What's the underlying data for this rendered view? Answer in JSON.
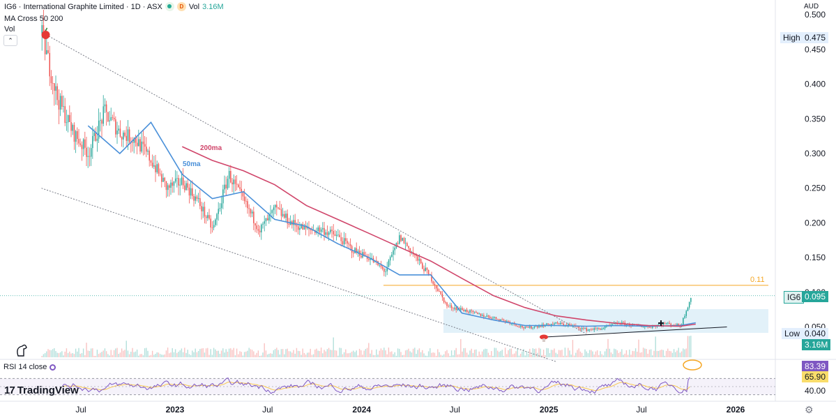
{
  "header": {
    "title": "IG6 · International Graphite Limited · 1D · ASX",
    "status_letter": "D",
    "vol_label": "Vol",
    "vol_value": "3.16M",
    "indicator": "MA Cross 50 200",
    "vol_pane": "Vol",
    "currency": "AUD"
  },
  "rsi_pane": {
    "label": "RSI 14 close"
  },
  "branding": {
    "logo_text": "TradingView",
    "logo_mark": "17"
  },
  "colors": {
    "up": "#26a69a",
    "down": "#ef5350",
    "ma50": "#4a90d9",
    "ma200": "#d0456a",
    "level": "#f5a623",
    "rsi": "#7e57c2",
    "trend": "#787b86",
    "box": "#cfe8f5"
  },
  "chart_data": [
    {
      "type": "candlestick",
      "title": "IG6 · International Graphite Limited · 1D · ASX",
      "x_ticks": [
        "Jul",
        "2023",
        "Jul",
        "2024",
        "Jul",
        "2025",
        "Jul",
        "2026"
      ],
      "y_ticks": [
        "0.500",
        "0.450",
        "0.400",
        "0.350",
        "0.300",
        "0.250",
        "0.200",
        "0.150",
        "0.100",
        "0.050"
      ],
      "ylim": [
        0.0,
        0.5
      ],
      "y_scale": "linear",
      "price_labels": {
        "high": {
          "label": "High",
          "value": "0.475"
        },
        "last": {
          "label": "IG6",
          "value": "0.095"
        },
        "low": {
          "label": "Low",
          "value": "0.040"
        },
        "volume": {
          "value": "3.16M"
        }
      },
      "ma_labels": {
        "ma50": "50ma",
        "ma200": "200ma"
      },
      "horizontal_level": {
        "value": 0.11,
        "label": "0.11"
      },
      "price_key_points": [
        {
          "x": "2022-04",
          "y": 0.47
        },
        {
          "x": "2022-05",
          "y": 0.38
        },
        {
          "x": "2022-06",
          "y": 0.33
        },
        {
          "x": "2022-07",
          "y": 0.3
        },
        {
          "x": "2022-08",
          "y": 0.36
        },
        {
          "x": "2022-09",
          "y": 0.33
        },
        {
          "x": "2022-10",
          "y": 0.32
        },
        {
          "x": "2022-11",
          "y": 0.29
        },
        {
          "x": "2022-12",
          "y": 0.25
        },
        {
          "x": "2023-01",
          "y": 0.26
        },
        {
          "x": "2023-02",
          "y": 0.23
        },
        {
          "x": "2023-03",
          "y": 0.19
        },
        {
          "x": "2023-04",
          "y": 0.27
        },
        {
          "x": "2023-05",
          "y": 0.23
        },
        {
          "x": "2023-06",
          "y": 0.19
        },
        {
          "x": "2023-07",
          "y": 0.22
        },
        {
          "x": "2023-08",
          "y": 0.2
        },
        {
          "x": "2023-09",
          "y": 0.19
        },
        {
          "x": "2023-10",
          "y": 0.19
        },
        {
          "x": "2023-11",
          "y": 0.18
        },
        {
          "x": "2023-12",
          "y": 0.16
        },
        {
          "x": "2024-01",
          "y": 0.15
        },
        {
          "x": "2024-02",
          "y": 0.13
        },
        {
          "x": "2024-03",
          "y": 0.18
        },
        {
          "x": "2024-04",
          "y": 0.15
        },
        {
          "x": "2024-05",
          "y": 0.12
        },
        {
          "x": "2024-06",
          "y": 0.08
        },
        {
          "x": "2024-07",
          "y": 0.075
        },
        {
          "x": "2024-08",
          "y": 0.068
        },
        {
          "x": "2024-09",
          "y": 0.063
        },
        {
          "x": "2024-10",
          "y": 0.057
        },
        {
          "x": "2024-11",
          "y": 0.048
        },
        {
          "x": "2024-12",
          "y": 0.052
        },
        {
          "x": "2025-01",
          "y": 0.055
        },
        {
          "x": "2025-02",
          "y": 0.052
        },
        {
          "x": "2025-03",
          "y": 0.046
        },
        {
          "x": "2025-04",
          "y": 0.048
        },
        {
          "x": "2025-05",
          "y": 0.056
        },
        {
          "x": "2025-06",
          "y": 0.052
        },
        {
          "x": "2025-07",
          "y": 0.05
        },
        {
          "x": "2025-08",
          "y": 0.055
        },
        {
          "x": "2025-09",
          "y": 0.052
        },
        {
          "x": "2025-10",
          "y": 0.115
        },
        {
          "x": "2025-10-06",
          "y": 0.095
        }
      ],
      "ma50_points": [
        {
          "x": "2022-07",
          "y": 0.34
        },
        {
          "x": "2022-09",
          "y": 0.3
        },
        {
          "x": "2022-11",
          "y": 0.345
        },
        {
          "x": "2023-01",
          "y": 0.27
        },
        {
          "x": "2023-03",
          "y": 0.235
        },
        {
          "x": "2023-05",
          "y": 0.245
        },
        {
          "x": "2023-07",
          "y": 0.205
        },
        {
          "x": "2023-09",
          "y": 0.195
        },
        {
          "x": "2023-11",
          "y": 0.17
        },
        {
          "x": "2024-01",
          "y": 0.15
        },
        {
          "x": "2024-03",
          "y": 0.125
        },
        {
          "x": "2024-05",
          "y": 0.125
        },
        {
          "x": "2024-07",
          "y": 0.07
        },
        {
          "x": "2024-09",
          "y": 0.06
        },
        {
          "x": "2024-11",
          "y": 0.052
        },
        {
          "x": "2025-01",
          "y": 0.052
        },
        {
          "x": "2025-03",
          "y": 0.051
        },
        {
          "x": "2025-05",
          "y": 0.052
        },
        {
          "x": "2025-07",
          "y": 0.051
        },
        {
          "x": "2025-09",
          "y": 0.052
        },
        {
          "x": "2025-10",
          "y": 0.056
        }
      ],
      "ma200_points": [
        {
          "x": "2023-01",
          "y": 0.31
        },
        {
          "x": "2023-03",
          "y": 0.29
        },
        {
          "x": "2023-05",
          "y": 0.275
        },
        {
          "x": "2023-07",
          "y": 0.255
        },
        {
          "x": "2023-09",
          "y": 0.225
        },
        {
          "x": "2023-11",
          "y": 0.205
        },
        {
          "x": "2024-01",
          "y": 0.185
        },
        {
          "x": "2024-03",
          "y": 0.165
        },
        {
          "x": "2024-05",
          "y": 0.145
        },
        {
          "x": "2024-07",
          "y": 0.12
        },
        {
          "x": "2024-09",
          "y": 0.095
        },
        {
          "x": "2024-11",
          "y": 0.078
        },
        {
          "x": "2025-01",
          "y": 0.066
        },
        {
          "x": "2025-03",
          "y": 0.06
        },
        {
          "x": "2025-05",
          "y": 0.055
        },
        {
          "x": "2025-07",
          "y": 0.052
        },
        {
          "x": "2025-09",
          "y": 0.051
        },
        {
          "x": "2025-10",
          "y": 0.054
        }
      ],
      "trendlines": [
        {
          "name": "upper-channel",
          "from": {
            "x": "2022-04",
            "y": 0.475
          },
          "to": {
            "x": "2025-03",
            "y": 0.04
          }
        },
        {
          "name": "lower-channel",
          "from": {
            "x": "2022-04",
            "y": 0.25
          },
          "to": {
            "x": "2025-01",
            "y": 0.0
          }
        },
        {
          "name": "support",
          "from": {
            "x": "2024-12",
            "y": 0.035
          },
          "to": {
            "x": "2025-12",
            "y": 0.05
          }
        }
      ]
    },
    {
      "type": "line",
      "title": "RSI 14 close",
      "y_ticks": [
        "40.00"
      ],
      "levels": [
        {
          "label": "83.39"
        },
        {
          "label": "65.90"
        }
      ],
      "last_value": 83.39,
      "ma_value": 65.9,
      "ylim": [
        0,
        100
      ]
    }
  ]
}
